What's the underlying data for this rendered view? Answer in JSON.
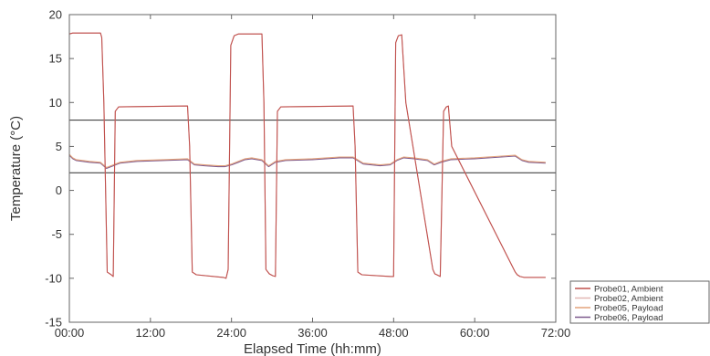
{
  "chart_data": {
    "type": "line",
    "title": "",
    "xlabel": "Elapsed Time (hh:mm)",
    "ylabel": "Temperature (°C)",
    "xlim": [
      0,
      72
    ],
    "ylim": [
      -15,
      20
    ],
    "x_ticks": [
      {
        "value": 0,
        "label": "00:00"
      },
      {
        "value": 12,
        "label": "12:00"
      },
      {
        "value": 24,
        "label": "24:00"
      },
      {
        "value": 36,
        "label": "36:00"
      },
      {
        "value": 48,
        "label": "48:00"
      },
      {
        "value": 60,
        "label": "60:00"
      },
      {
        "value": 72,
        "label": "72:00"
      }
    ],
    "y_ticks": [
      {
        "value": 20,
        "label": "20"
      },
      {
        "value": 15,
        "label": "15"
      },
      {
        "value": 10,
        "label": "10"
      },
      {
        "value": 5,
        "label": "5"
      },
      {
        "value": 0,
        "label": "0"
      },
      {
        "value": -5,
        "label": "-5"
      },
      {
        "value": -10,
        "label": "-10"
      },
      {
        "value": -15,
        "label": "-15"
      }
    ],
    "grid": false,
    "legend_position": "outside-bottom-right",
    "reference_lines": [
      {
        "y": 8,
        "color": "#444444"
      },
      {
        "y": 2,
        "color": "#444444"
      }
    ],
    "series": [
      {
        "name": "Probe01, Ambient",
        "color": "#c0504d",
        "x": [
          0,
          0.5,
          4.6,
          4.8,
          5.1,
          5.6,
          6.2,
          6.5,
          6.8,
          7.3,
          17.5,
          17.8,
          18.2,
          18.8,
          22.8,
          23.2,
          23.5,
          23.9,
          24.4,
          25,
          28.5,
          28.8,
          29.1,
          29.6,
          30.1,
          30.5,
          30.8,
          31.3,
          42,
          42.3,
          42.7,
          43.3,
          47.6,
          48,
          48.3,
          48.7,
          49.2,
          49.8,
          53.8,
          54.1,
          54.4,
          54.9,
          55.4,
          55.8,
          56.1,
          56.6,
          66,
          66.3,
          66.7,
          67.3,
          70.5
        ],
        "y": [
          17.8,
          17.9,
          17.9,
          17.4,
          10,
          -9.3,
          -9.6,
          -9.8,
          9,
          9.5,
          9.6,
          5,
          -9.3,
          -9.6,
          -9.9,
          -10,
          -9,
          16.5,
          17.6,
          17.8,
          17.8,
          10,
          -9,
          -9.5,
          -9.7,
          -9.8,
          9,
          9.5,
          9.6,
          5,
          -9.3,
          -9.6,
          -9.8,
          -9.8,
          16.8,
          17.6,
          17.7,
          10,
          -9,
          -9.5,
          -9.6,
          -9.8,
          9,
          9.5,
          9.6,
          5,
          -9.3,
          -9.6,
          -9.8,
          -9.9,
          -9.9
        ]
      },
      {
        "name": "Probe02, Ambient",
        "color": "#e2b7b4",
        "x": [
          0,
          0.5,
          4.6,
          4.8,
          5.1,
          5.6,
          6.2,
          6.5,
          6.8,
          7.3,
          17.5,
          17.8,
          18.2,
          18.8,
          22.8,
          23.2,
          23.5,
          23.9,
          24.4,
          25,
          28.5,
          28.8,
          29.1,
          29.6,
          30.1,
          30.5,
          30.8,
          31.3,
          42,
          42.3,
          42.7,
          43.3,
          47.6,
          48,
          48.3,
          48.7,
          49.2,
          49.8,
          53.8,
          54.1,
          54.4,
          54.9,
          55.4,
          55.8,
          56.1,
          56.6,
          66,
          66.3,
          66.7,
          67.3,
          70.5
        ],
        "y": [
          17.8,
          17.9,
          17.9,
          17.4,
          10,
          -9.3,
          -9.6,
          -9.8,
          9,
          9.5,
          9.6,
          5,
          -9.3,
          -9.6,
          -9.9,
          -10,
          -9,
          16.5,
          17.6,
          17.8,
          17.8,
          10,
          -9,
          -9.5,
          -9.7,
          -9.8,
          9,
          9.5,
          9.6,
          5,
          -9.3,
          -9.6,
          -9.8,
          -9.8,
          16.8,
          17.6,
          17.7,
          10,
          -9,
          -9.5,
          -9.6,
          -9.8,
          9,
          9.5,
          9.6,
          5,
          -9.3,
          -9.6,
          -9.8,
          -9.9,
          -9.9
        ]
      },
      {
        "name": "Probe05, Payload",
        "color": "#e3a37c",
        "x": [
          0,
          0.5,
          1,
          2,
          3,
          4.6,
          5.5,
          6.5,
          7.5,
          10,
          14,
          17.5,
          18.5,
          20,
          22,
          23,
          24,
          25,
          26,
          27,
          28.5,
          29.5,
          30.5,
          32,
          36,
          40,
          42,
          43.5,
          46,
          47.5,
          48.5,
          49.5,
          51,
          53,
          54,
          55,
          56.5,
          60,
          64,
          66,
          67,
          68,
          70.5
        ],
        "y": [
          4.1,
          3.7,
          3.5,
          3.4,
          3.3,
          3.2,
          2.6,
          2.9,
          3.2,
          3.4,
          3.5,
          3.6,
          3.0,
          2.9,
          2.8,
          2.8,
          3.0,
          3.3,
          3.6,
          3.7,
          3.5,
          2.8,
          3.3,
          3.5,
          3.6,
          3.8,
          3.8,
          3.1,
          2.9,
          3.0,
          3.5,
          3.8,
          3.7,
          3.5,
          3.0,
          3.3,
          3.6,
          3.7,
          3.9,
          4.0,
          3.5,
          3.3,
          3.2
        ]
      },
      {
        "name": "Probe06, Payload",
        "color": "#7e5a8e",
        "x": [
          0,
          0.5,
          1,
          2,
          3,
          4.6,
          5.5,
          6.5,
          7.5,
          10,
          14,
          17.5,
          18.5,
          20,
          22,
          23,
          24,
          25,
          26,
          27,
          28.5,
          29.5,
          30.5,
          32,
          36,
          40,
          42,
          43.5,
          46,
          47.5,
          48.5,
          49.5,
          51,
          53,
          54,
          55,
          56.5,
          60,
          64,
          66,
          67,
          68,
          70.5
        ],
        "y": [
          4.0,
          3.6,
          3.4,
          3.3,
          3.2,
          3.1,
          2.5,
          2.8,
          3.1,
          3.3,
          3.4,
          3.5,
          2.9,
          2.8,
          2.7,
          2.7,
          2.9,
          3.2,
          3.5,
          3.6,
          3.4,
          2.7,
          3.2,
          3.4,
          3.5,
          3.7,
          3.7,
          3.0,
          2.8,
          2.9,
          3.4,
          3.7,
          3.6,
          3.4,
          2.9,
          3.2,
          3.5,
          3.6,
          3.8,
          3.9,
          3.4,
          3.2,
          3.1
        ]
      }
    ]
  }
}
